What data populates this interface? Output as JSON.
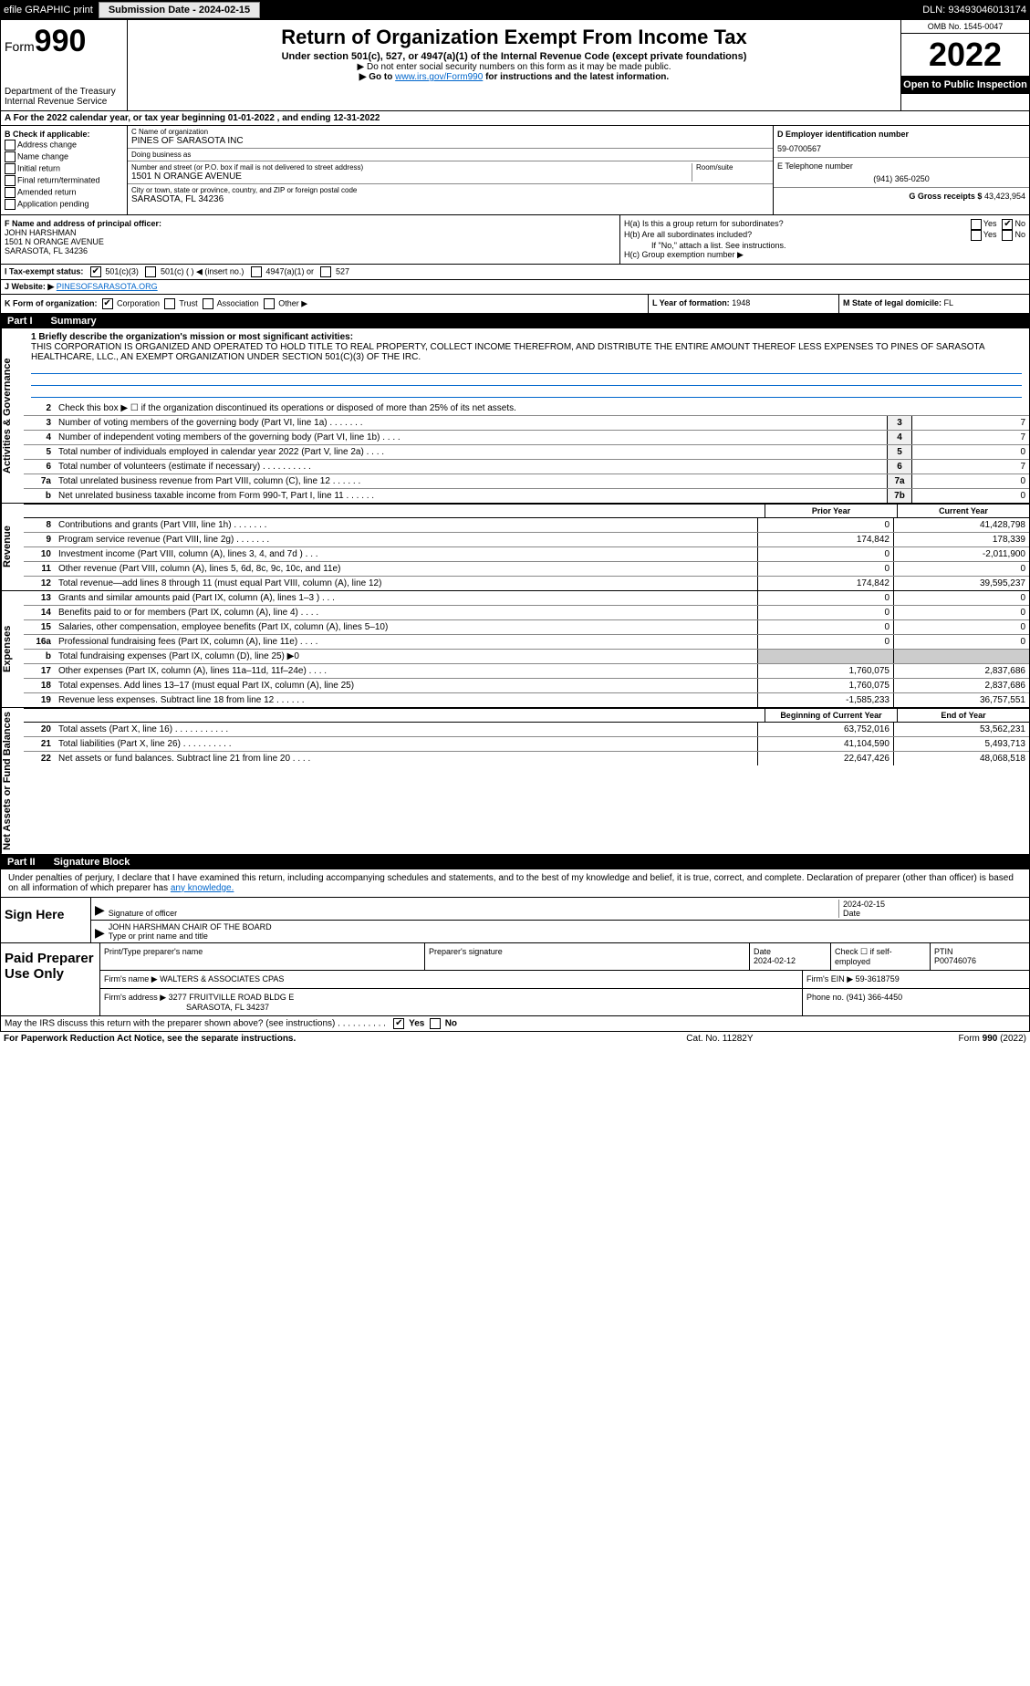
{
  "topbar": {
    "efile": "efile GRAPHIC print",
    "submission_label": "Submission Date - 2024-02-15",
    "dln": "DLN: 93493046013174"
  },
  "header": {
    "form_prefix": "Form",
    "form_number": "990",
    "dept": "Department of the Treasury",
    "irs": "Internal Revenue Service",
    "title": "Return of Organization Exempt From Income Tax",
    "subtitle": "Under section 501(c), 527, or 4947(a)(1) of the Internal Revenue Code (except private foundations)",
    "note1": "▶ Do not enter social security numbers on this form as it may be made public.",
    "note2_pre": "▶ Go to ",
    "note2_link": "www.irs.gov/Form990",
    "note2_post": " for instructions and the latest information.",
    "omb": "OMB No. 1545-0047",
    "year": "2022",
    "open": "Open to Public Inspection"
  },
  "row_a": "A For the 2022 calendar year, or tax year beginning 01-01-2022     , and ending 12-31-2022",
  "col_b": {
    "hdr": "B Check if applicable:",
    "items": [
      "Address change",
      "Name change",
      "Initial return",
      "Final return/terminated",
      "Amended return",
      "Application pending"
    ]
  },
  "col_c": {
    "name_lbl": "C Name of organization",
    "name": "PINES OF SARASOTA INC",
    "dba_lbl": "Doing business as",
    "dba": "",
    "addr_lbl": "Number and street (or P.O. box if mail is not delivered to street address)",
    "room_lbl": "Room/suite",
    "addr": "1501 N ORANGE AVENUE",
    "city_lbl": "City or town, state or province, country, and ZIP or foreign postal code",
    "city": "SARASOTA, FL  34236"
  },
  "col_d": {
    "ein_lbl": "D Employer identification number",
    "ein": "59-0700567",
    "tel_lbl": "E Telephone number",
    "tel": "(941) 365-0250",
    "gross_lbl": "G Gross receipts $",
    "gross": "43,423,954"
  },
  "row_f": {
    "lbl": "F  Name and address of principal officer:",
    "name": "JOHN HARSHMAN",
    "addr1": "1501 N ORANGE AVENUE",
    "addr2": "SARASOTA, FL  34236"
  },
  "row_h": {
    "ha": "H(a)  Is this a group return for subordinates?",
    "hb": "H(b)  Are all subordinates included?",
    "hb_note": "If \"No,\" attach a list. See instructions.",
    "hc": "H(c)  Group exemption number ▶",
    "yes": "Yes",
    "no": "No"
  },
  "row_i": {
    "lbl": "I  Tax-exempt status:",
    "opt1": "501(c)(3)",
    "opt2": "501(c) (   ) ◀ (insert no.)",
    "opt3": "4947(a)(1) or",
    "opt4": "527"
  },
  "row_j": {
    "lbl": "J  Website: ▶",
    "val": "PINESOFSARASOTA.ORG"
  },
  "row_k": {
    "lbl": "K Form of organization:",
    "opts": [
      "Corporation",
      "Trust",
      "Association",
      "Other ▶"
    ],
    "l_lbl": "L Year of formation:",
    "l_val": "1948",
    "m_lbl": "M State of legal domicile:",
    "m_val": "FL"
  },
  "part1": {
    "num": "Part I",
    "title": "Summary",
    "mission_lbl": "1  Briefly describe the organization's mission or most significant activities:",
    "mission": "THIS CORPORATION IS ORGANIZED AND OPERATED TO HOLD TITLE TO REAL PROPERTY, COLLECT INCOME THEREFROM, AND DISTRIBUTE THE ENTIRE AMOUNT THEREOF LESS EXPENSES TO PINES OF SARASOTA HEALTHCARE, LLC., AN EXEMPT ORGANIZATION UNDER SECTION 501(C)(3) OF THE IRC.",
    "line2": "Check this box ▶ ☐  if the organization discontinued its operations or disposed of more than 25% of its net assets."
  },
  "vtabs": {
    "ag": "Activities & Governance",
    "rev": "Revenue",
    "exp": "Expenses",
    "na": "Net Assets or Fund Balances"
  },
  "ag_lines": [
    {
      "n": "3",
      "t": "Number of voting members of the governing body (Part VI, line 1a)   .    .    .    .    .    .    .",
      "box": "3",
      "v": "7"
    },
    {
      "n": "4",
      "t": "Number of independent voting members of the governing body (Part VI, line 1b)   .    .    .    .",
      "box": "4",
      "v": "7"
    },
    {
      "n": "5",
      "t": "Total number of individuals employed in calendar year 2022 (Part V, line 2a)   .    .    .    .",
      "box": "5",
      "v": "0"
    },
    {
      "n": "6",
      "t": "Total number of volunteers (estimate if necessary)    .    .    .    .    .    .    .    .    .    .",
      "box": "6",
      "v": "7"
    },
    {
      "n": "7a",
      "t": "Total unrelated business revenue from Part VIII, column (C), line 12   .    .    .    .    .    .",
      "box": "7a",
      "v": "0"
    },
    {
      "n": "b",
      "t": "Net unrelated business taxable income from Form 990-T, Part I, line 11   .    .    .    .    .    .",
      "box": "7b",
      "v": "0"
    }
  ],
  "colhdr": {
    "prior": "Prior Year",
    "current": "Current Year"
  },
  "rev_lines": [
    {
      "n": "8",
      "t": "Contributions and grants (Part VIII, line 1h)   .    .    .    .    .    .    .",
      "v1": "0",
      "v2": "41,428,798"
    },
    {
      "n": "9",
      "t": "Program service revenue (Part VIII, line 2g)    .    .    .    .    .    .    .",
      "v1": "174,842",
      "v2": "178,339"
    },
    {
      "n": "10",
      "t": "Investment income (Part VIII, column (A), lines 3, 4, and 7d )   .    .    .",
      "v1": "0",
      "v2": "-2,011,900"
    },
    {
      "n": "11",
      "t": "Other revenue (Part VIII, column (A), lines 5, 6d, 8c, 9c, 10c, and 11e)",
      "v1": "0",
      "v2": "0"
    },
    {
      "n": "12",
      "t": "Total revenue—add lines 8 through 11 (must equal Part VIII, column (A), line 12)",
      "v1": "174,842",
      "v2": "39,595,237"
    }
  ],
  "exp_lines": [
    {
      "n": "13",
      "t": "Grants and similar amounts paid (Part IX, column (A), lines 1–3 )   .    .    .",
      "v1": "0",
      "v2": "0"
    },
    {
      "n": "14",
      "t": "Benefits paid to or for members (Part IX, column (A), line 4)   .    .    .    .",
      "v1": "0",
      "v2": "0"
    },
    {
      "n": "15",
      "t": "Salaries, other compensation, employee benefits (Part IX, column (A), lines 5–10)",
      "v1": "0",
      "v2": "0"
    },
    {
      "n": "16a",
      "t": "Professional fundraising fees (Part IX, column (A), line 11e)   .    .    .    .",
      "v1": "0",
      "v2": "0"
    },
    {
      "n": "b",
      "t": "Total fundraising expenses (Part IX, column (D), line 25) ▶0",
      "v1": "",
      "v2": ""
    },
    {
      "n": "17",
      "t": "Other expenses (Part IX, column (A), lines 11a–11d, 11f–24e)   .    .    .    .",
      "v1": "1,760,075",
      "v2": "2,837,686"
    },
    {
      "n": "18",
      "t": "Total expenses. Add lines 13–17 (must equal Part IX, column (A), line 25)",
      "v1": "1,760,075",
      "v2": "2,837,686"
    },
    {
      "n": "19",
      "t": "Revenue less expenses. Subtract line 18 from line 12   .    .    .    .    .    .",
      "v1": "-1,585,233",
      "v2": "36,757,551"
    }
  ],
  "na_hdr": {
    "c1": "Beginning of Current Year",
    "c2": "End of Year"
  },
  "na_lines": [
    {
      "n": "20",
      "t": "Total assets (Part X, line 16)   .    .    .    .    .    .    .    .    .    .    .",
      "v1": "63,752,016",
      "v2": "53,562,231"
    },
    {
      "n": "21",
      "t": "Total liabilities (Part X, line 26)   .    .    .    .    .    .    .    .    .    .",
      "v1": "41,104,590",
      "v2": "5,493,713"
    },
    {
      "n": "22",
      "t": "Net assets or fund balances. Subtract line 21 from line 20   .    .    .    .",
      "v1": "22,647,426",
      "v2": "48,068,518"
    }
  ],
  "part2": {
    "num": "Part II",
    "title": "Signature Block"
  },
  "sig": {
    "decl": "Under penalties of perjury, I declare that I have examined this return, including accompanying schedules and statements, and to the best of my knowledge and belief, it is true, correct, and complete. Declaration of preparer (other than officer) is based on all information of which preparer has ",
    "decl_link": "any knowledge.",
    "sign_here": "Sign Here",
    "sig_officer": "Signature of officer",
    "date": "Date",
    "sig_date": "2024-02-15",
    "name_title": "JOHN HARSHMAN  CHAIR OF THE BOARD",
    "type_name": "Type or print name and title"
  },
  "paid": {
    "lbl": "Paid Preparer Use Only",
    "h_name": "Print/Type preparer's name",
    "h_sig": "Preparer's signature",
    "h_date": "Date",
    "date": "2024-02-12",
    "h_check": "Check ☐ if self-employed",
    "h_ptin": "PTIN",
    "ptin": "P00746076",
    "firm_lbl": "Firm's name     ▶",
    "firm": "WALTERS & ASSOCIATES CPAS",
    "ein_lbl": "Firm's EIN ▶",
    "ein": "59-3618759",
    "addr_lbl": "Firm's address ▶",
    "addr1": "3277 FRUITVILLE ROAD BLDG E",
    "addr2": "SARASOTA, FL  34237",
    "phone_lbl": "Phone no.",
    "phone": "(941) 366-4450"
  },
  "may_irs": {
    "text": "May the IRS discuss this return with the preparer shown above? (see instructions)   .    .    .    .    .    .    .    .    .    .",
    "yes": "Yes",
    "no": "No"
  },
  "footer": {
    "left": "For Paperwork Reduction Act Notice, see the separate instructions.",
    "mid": "Cat. No. 11282Y",
    "right": "Form 990 (2022)"
  }
}
